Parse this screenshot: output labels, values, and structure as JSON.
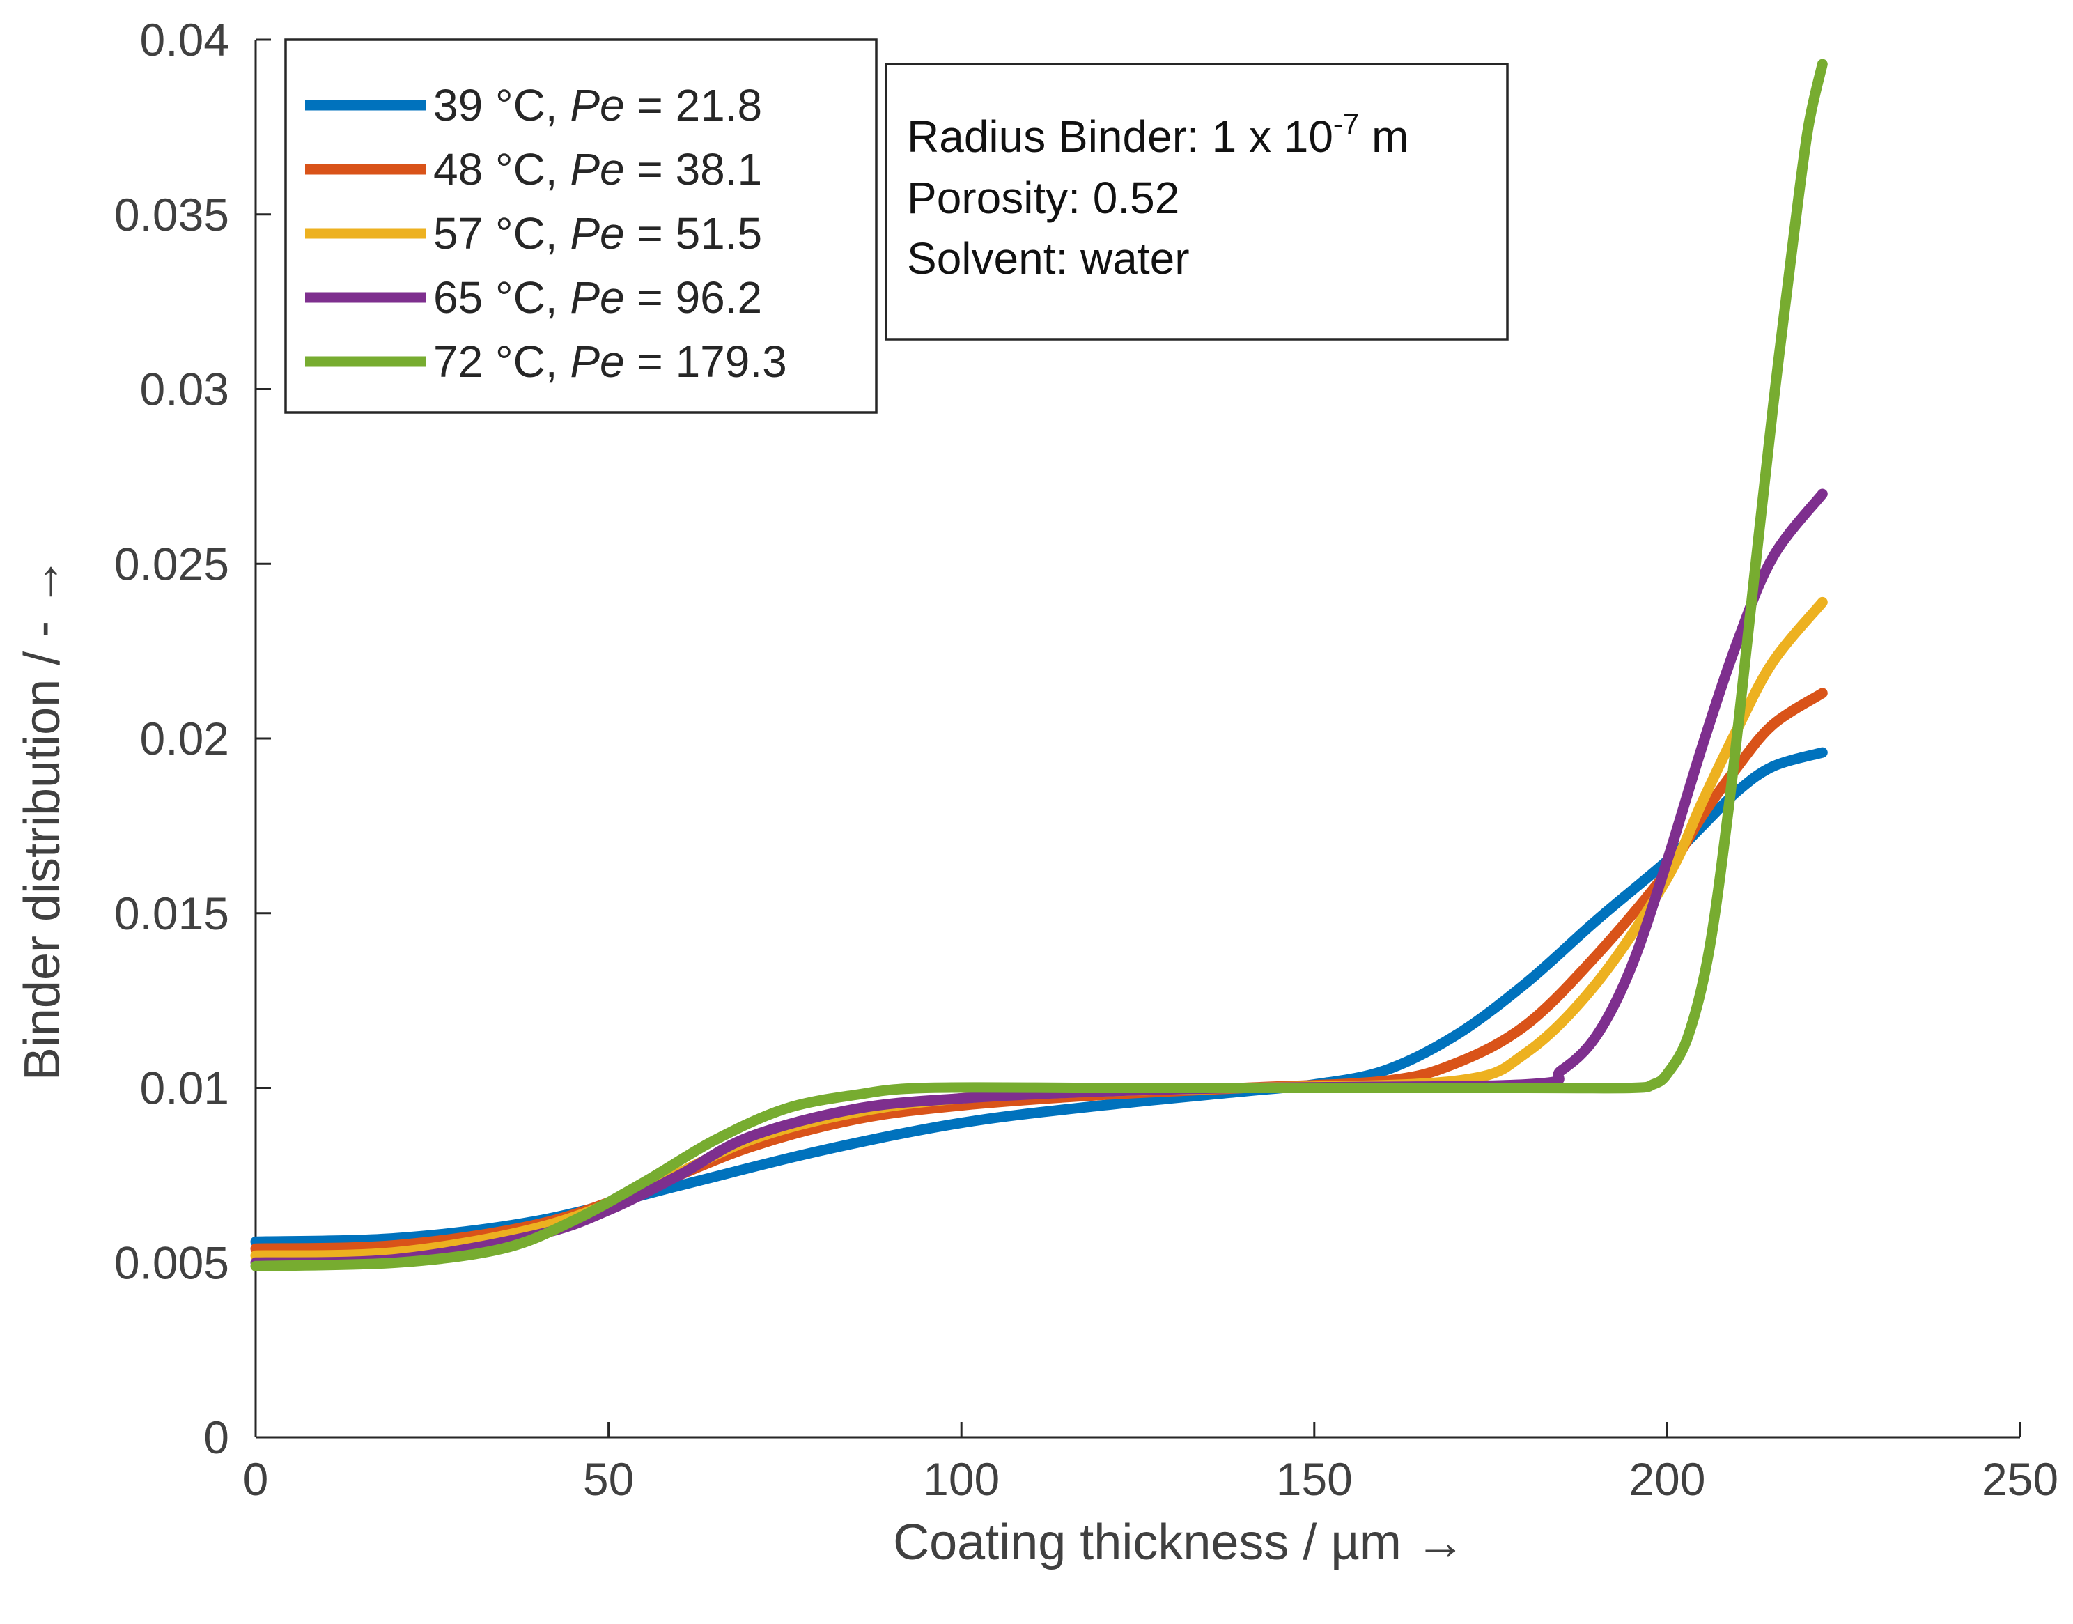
{
  "chart_data": {
    "type": "line",
    "title": "",
    "xlabel": "Coating thickness / µm →",
    "ylabel": "Binder distribution / - →",
    "xlim": [
      0,
      250
    ],
    "ylim": [
      0,
      0.04
    ],
    "xticks": [
      0,
      50,
      100,
      150,
      200,
      250
    ],
    "xtick_labels": [
      "0",
      "50",
      "100",
      "150",
      "200",
      "250"
    ],
    "yticks": [
      0,
      0.005,
      0.01,
      0.015,
      0.02,
      0.025,
      0.03,
      0.035,
      0.04
    ],
    "ytick_labels": [
      "0",
      "0.005",
      "0.01",
      "0.015",
      "0.02",
      "0.025",
      "0.03",
      "0.035",
      "0.04"
    ],
    "grid": false,
    "legend_position": "top-left",
    "series": [
      {
        "temp": "39 °C,",
        "pe_symbol": "Pe",
        "pe_value": "= 21.8",
        "color": "#0072BD",
        "x": [
          0,
          20,
          40,
          60,
          80,
          100,
          120,
          140,
          150,
          160,
          170,
          180,
          190,
          200,
          205,
          210,
          215,
          222
        ],
        "y": [
          0.0056,
          0.0057,
          0.0062,
          0.0072,
          0.0082,
          0.009,
          0.0095,
          0.0099,
          0.0101,
          0.0105,
          0.0115,
          0.013,
          0.0148,
          0.0165,
          0.0175,
          0.0185,
          0.0192,
          0.0196
        ]
      },
      {
        "temp": "48 °C,",
        "pe_symbol": "Pe",
        "pe_value": "= 38.1",
        "color": "#D95319",
        "x": [
          0,
          20,
          40,
          55,
          70,
          85,
          100,
          120,
          140,
          160,
          170,
          180,
          190,
          200,
          205,
          210,
          215,
          222
        ],
        "y": [
          0.0054,
          0.0055,
          0.0061,
          0.0071,
          0.0083,
          0.0091,
          0.0095,
          0.0098,
          0.01,
          0.0102,
          0.0107,
          0.0118,
          0.0138,
          0.0162,
          0.0178,
          0.0192,
          0.0204,
          0.0213
        ]
      },
      {
        "temp": "57 °C,",
        "pe_symbol": "Pe",
        "pe_value": "= 51.5",
        "color": "#EDB120",
        "x": [
          0,
          20,
          40,
          55,
          70,
          85,
          100,
          120,
          140,
          170,
          180,
          190,
          200,
          205,
          210,
          215,
          222
        ],
        "y": [
          0.0052,
          0.0053,
          0.006,
          0.0071,
          0.0085,
          0.0093,
          0.0097,
          0.0099,
          0.01,
          0.0102,
          0.011,
          0.013,
          0.016,
          0.0182,
          0.0203,
          0.0222,
          0.0239
        ]
      },
      {
        "temp": "65 °C,",
        "pe_symbol": "Pe",
        "pe_value": "= 96.2",
        "color": "#7E2F8E",
        "x": [
          0,
          20,
          40,
          50,
          60,
          70,
          85,
          100,
          120,
          140,
          180,
          185,
          190,
          195,
          200,
          205,
          210,
          215,
          222
        ],
        "y": [
          0.005,
          0.0051,
          0.0058,
          0.0065,
          0.0075,
          0.0086,
          0.0094,
          0.0097,
          0.0099,
          0.01,
          0.0101,
          0.0105,
          0.0115,
          0.0135,
          0.0165,
          0.0198,
          0.0228,
          0.0252,
          0.027
        ]
      },
      {
        "temp": "72 °C,",
        "pe_symbol": "Pe",
        "pe_value": "= 179.3",
        "color": "#77AC30",
        "x": [
          0,
          20,
          35,
          45,
          55,
          65,
          75,
          85,
          95,
          120,
          150,
          180,
          195,
          198,
          200,
          203,
          206,
          209,
          212,
          215,
          218,
          220,
          222
        ],
        "y": [
          0.0049,
          0.005,
          0.0054,
          0.0062,
          0.0073,
          0.0085,
          0.0094,
          0.0098,
          0.01,
          0.01,
          0.01,
          0.01,
          0.01,
          0.0101,
          0.0104,
          0.0115,
          0.014,
          0.0185,
          0.024,
          0.0295,
          0.0345,
          0.0375,
          0.0393
        ]
      }
    ],
    "annotation": {
      "line1_prefix": "Radius Binder: 1 x 10",
      "line1_exp": "-7",
      "line1_suffix": " m",
      "line2": "Porosity: 0.52",
      "line3": "Solvent: water"
    }
  }
}
